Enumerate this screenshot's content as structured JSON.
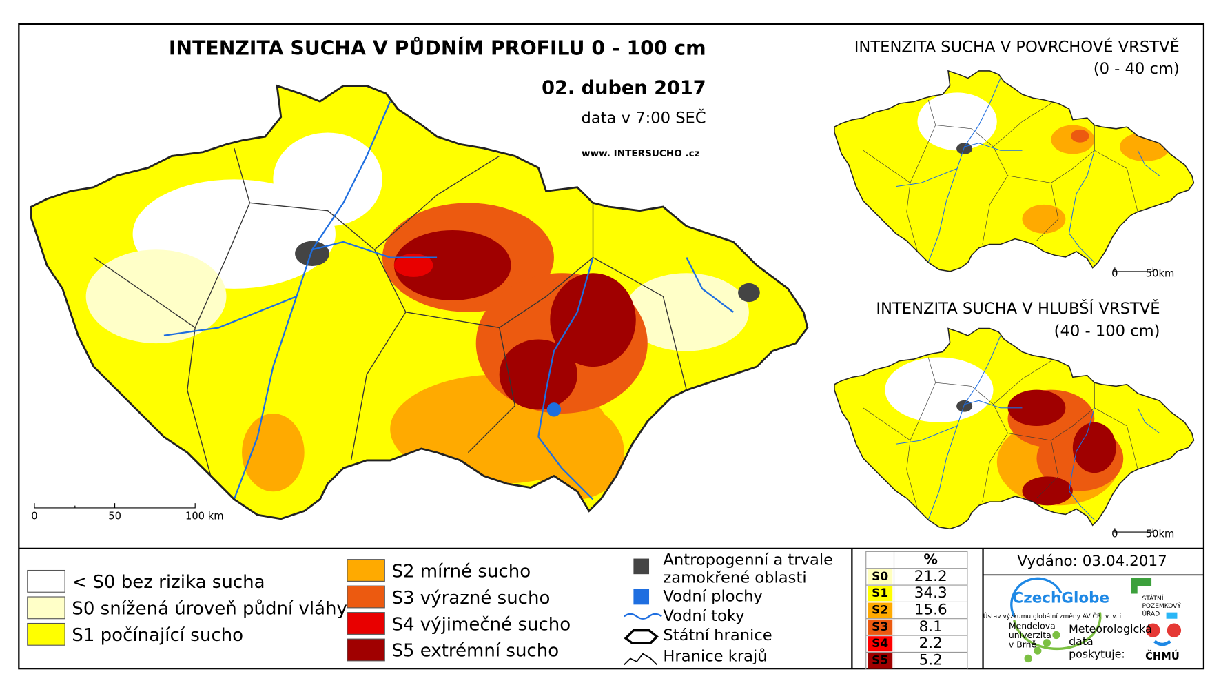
{
  "map": {
    "title": "INTENZITA SUCHA V PŮDNÍM PROFILU 0 - 100 cm",
    "date": "02. duben 2017",
    "data_time": "data v 7:00 SEČ",
    "website": "www. INTERSUCHO .cz",
    "scalebar": [
      "0",
      "50",
      "100 km"
    ]
  },
  "inset_surface": {
    "title": "INTENZITA SUCHA V POVRCHOVÉ VRSTVĚ",
    "depth": "(0 - 40 cm)",
    "scalebar": [
      "0",
      "50km"
    ]
  },
  "inset_deep": {
    "title": "INTENZITA SUCHA V HLUBŠÍ VRSTVĚ",
    "depth": "(40 - 100 cm)",
    "scalebar": [
      "0",
      "50km"
    ]
  },
  "legend": [
    {
      "label": "< S0 bez rizika sucha",
      "color": "#ffffff"
    },
    {
      "label": "S0 snížená úroveň půdní vláhy",
      "color": "#ffffc8"
    },
    {
      "label": "S1 počínající sucho",
      "color": "#ffff00"
    },
    {
      "label": "S2 mírné sucho",
      "color": "#ffaa00"
    },
    {
      "label": "S3 výrazné sucho",
      "color": "#ec5a10"
    },
    {
      "label": "S4 výjimečné sucho",
      "color": "#e80000"
    },
    {
      "label": "S5 extrémní sucho",
      "color": "#a00000"
    }
  ],
  "symbols": {
    "anthropogenic": [
      "Antropogenní a trvale",
      "zamokřené oblasti"
    ],
    "water_bodies": "Vodní plochy",
    "rivers": "Vodní toky",
    "state_border": "Státní hranice",
    "region_border": "Hranice krajů"
  },
  "stats": {
    "header": "%",
    "rows": [
      {
        "class": "S0",
        "percent": 21.2,
        "color": "#ffffbe"
      },
      {
        "class": "S1",
        "percent": 34.3,
        "color": "#ffff00"
      },
      {
        "class": "S2",
        "percent": 15.6,
        "color": "#ffaa00"
      },
      {
        "class": "S3",
        "percent": 8.1,
        "color": "#ec5a10"
      },
      {
        "class": "S4",
        "percent": 2.2,
        "color": "#ff0000"
      },
      {
        "class": "S5",
        "percent": 5.2,
        "color": "#a00000"
      }
    ]
  },
  "issued": "Vydáno: 03.04.2017",
  "logos": {
    "czechglobe": "CzechGlobe",
    "czechglobe_sub": "Ústav výzkumu globální změny AV ČR, v. v. i.",
    "mendel": [
      "Mendelova",
      "univerzita",
      "v Brně"
    ],
    "spu": [
      "STÁTNÍ",
      "POZEMKOVÝ",
      "ÚŘAD"
    ],
    "chmi_note": [
      "Meteorologická",
      "data",
      "poskytuje:"
    ],
    "chmi": "ČHMÚ"
  }
}
